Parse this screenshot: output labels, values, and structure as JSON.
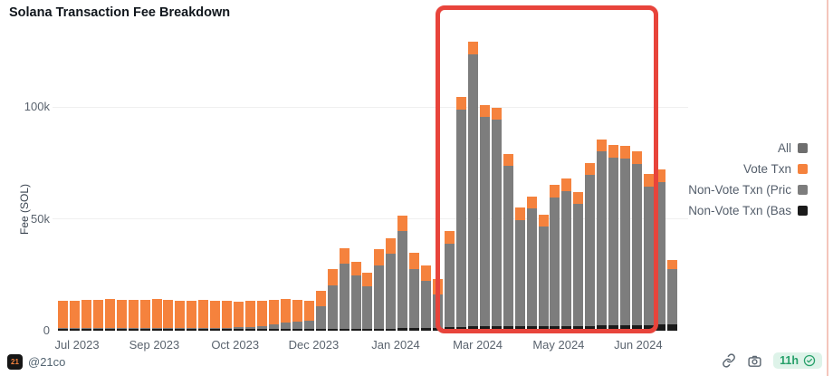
{
  "title": "Solana Transaction Fee Breakdown",
  "y_axis": {
    "label": "Fee (SOL)",
    "ticks": [
      {
        "label": "0",
        "value": 0
      },
      {
        "label": "50k",
        "value": 50
      },
      {
        "label": "100k",
        "value": 100
      }
    ]
  },
  "legend": [
    {
      "label": "All",
      "color": "#6e6e6e"
    },
    {
      "label": "Vote Txn",
      "color": "#f5823d"
    },
    {
      "label": "Non-Vote Txn (Pric",
      "color": "#7d7d7d"
    },
    {
      "label": "Non-Vote Txn (Bas",
      "color": "#1a1a1a"
    }
  ],
  "annotation": {
    "color": "#e8443b",
    "note": "red rounded rectangle highlighting Mar 2024 - Jun 2024 region"
  },
  "footer": {
    "logo_text": "21",
    "handle": "@21co",
    "badge_text": "11h"
  },
  "chart_data": {
    "type": "bar",
    "stacked": true,
    "title": "Solana Transaction Fee Breakdown",
    "ylabel": "Fee (SOL)",
    "unit": "thousand SOL per weekly bar",
    "ylim": [
      0,
      135
    ],
    "grid": "horizontal, at 50k and 100k",
    "legend_position": "right, outside plot",
    "series_order_bottom_to_top": [
      "base",
      "priority",
      "vote"
    ],
    "colors": {
      "vote": "#f5823d",
      "priority": "#7d7d7d",
      "base": "#1a1a1a",
      "all": "#6e6e6e"
    },
    "x_ticks": [
      {
        "label": "Jul 2023",
        "bar_index": 1.2
      },
      {
        "label": "Sep 2023",
        "bar_index": 7.8
      },
      {
        "label": "Oct 2023",
        "bar_index": 14.7
      },
      {
        "label": "Dec 2023",
        "bar_index": 21.4
      },
      {
        "label": "Jan 2024",
        "bar_index": 28.4
      },
      {
        "label": "Mar 2024",
        "bar_index": 35.4
      },
      {
        "label": "May 2024",
        "bar_index": 42.3
      },
      {
        "label": "Jun 2024",
        "bar_index": 49.1
      }
    ],
    "highlighted_bar_range": [
      33,
      50
    ],
    "bars": [
      {
        "base": 0.9,
        "priority": 0.2,
        "vote": 12.2
      },
      {
        "base": 0.9,
        "priority": 0.2,
        "vote": 12.4
      },
      {
        "base": 0.9,
        "priority": 0.2,
        "vote": 12.6
      },
      {
        "base": 0.9,
        "priority": 0.2,
        "vote": 12.7
      },
      {
        "base": 0.9,
        "priority": 0.3,
        "vote": 12.8
      },
      {
        "base": 0.9,
        "priority": 0.2,
        "vote": 12.7
      },
      {
        "base": 0.9,
        "priority": 0.2,
        "vote": 12.5
      },
      {
        "base": 0.9,
        "priority": 0.3,
        "vote": 12.7
      },
      {
        "base": 0.9,
        "priority": 0.3,
        "vote": 12.9
      },
      {
        "base": 0.9,
        "priority": 0.3,
        "vote": 12.5
      },
      {
        "base": 0.9,
        "priority": 0.3,
        "vote": 12.3
      },
      {
        "base": 0.9,
        "priority": 0.3,
        "vote": 12.1
      },
      {
        "base": 0.9,
        "priority": 0.4,
        "vote": 12.3
      },
      {
        "base": 0.9,
        "priority": 0.4,
        "vote": 12.1
      },
      {
        "base": 0.9,
        "priority": 0.5,
        "vote": 11.8
      },
      {
        "base": 0.9,
        "priority": 0.6,
        "vote": 11.5
      },
      {
        "base": 0.9,
        "priority": 0.8,
        "vote": 11.6
      },
      {
        "base": 0.9,
        "priority": 1.2,
        "vote": 11.4
      },
      {
        "base": 0.9,
        "priority": 1.8,
        "vote": 11.0
      },
      {
        "base": 0.9,
        "priority": 2.6,
        "vote": 10.5
      },
      {
        "base": 0.9,
        "priority": 3.2,
        "vote": 9.5
      },
      {
        "base": 0.9,
        "priority": 3.6,
        "vote": 8.7
      },
      {
        "base": 1.0,
        "priority": 10.0,
        "vote": 7.0
      },
      {
        "base": 1.0,
        "priority": 19.4,
        "vote": 7.0
      },
      {
        "base": 1.0,
        "priority": 29.0,
        "vote": 7.0
      },
      {
        "base": 1.0,
        "priority": 23.6,
        "vote": 6.0
      },
      {
        "base": 1.0,
        "priority": 18.8,
        "vote": 6.0
      },
      {
        "base": 1.0,
        "priority": 28.3,
        "vote": 7.0
      },
      {
        "base": 1.0,
        "priority": 33.5,
        "vote": 7.0
      },
      {
        "base": 1.2,
        "priority": 43.4,
        "vote": 7.0
      },
      {
        "base": 1.2,
        "priority": 26.5,
        "vote": 7.0
      },
      {
        "base": 1.2,
        "priority": 21.0,
        "vote": 7.0
      },
      {
        "base": 1.2,
        "priority": 15.0,
        "vote": 6.8
      },
      {
        "base": 1.5,
        "priority": 37.4,
        "vote": 5.5
      },
      {
        "base": 1.8,
        "priority": 97.0,
        "vote": 5.5
      },
      {
        "base": 2.0,
        "priority": 121.5,
        "vote": 5.5
      },
      {
        "base": 2.0,
        "priority": 93.5,
        "vote": 5.5
      },
      {
        "base": 2.0,
        "priority": 92.3,
        "vote": 5.5
      },
      {
        "base": 2.0,
        "priority": 71.5,
        "vote": 5.5
      },
      {
        "base": 2.0,
        "priority": 47.5,
        "vote": 5.5
      },
      {
        "base": 2.0,
        "priority": 52.5,
        "vote": 5.5
      },
      {
        "base": 2.0,
        "priority": 44.5,
        "vote": 5.5
      },
      {
        "base": 2.0,
        "priority": 57.5,
        "vote": 5.5
      },
      {
        "base": 2.2,
        "priority": 60.3,
        "vote": 5.5
      },
      {
        "base": 2.2,
        "priority": 54.3,
        "vote": 5.5
      },
      {
        "base": 2.2,
        "priority": 67.3,
        "vote": 5.5
      },
      {
        "base": 2.4,
        "priority": 77.6,
        "vote": 5.5
      },
      {
        "base": 2.4,
        "priority": 75.1,
        "vote": 5.5
      },
      {
        "base": 2.4,
        "priority": 74.6,
        "vote": 5.5
      },
      {
        "base": 2.4,
        "priority": 72.1,
        "vote": 5.5
      },
      {
        "base": 2.6,
        "priority": 61.9,
        "vote": 5.5
      },
      {
        "base": 3.0,
        "priority": 63.5,
        "vote": 5.5
      },
      {
        "base": 3.0,
        "priority": 24.5,
        "vote": 4.0
      }
    ]
  }
}
